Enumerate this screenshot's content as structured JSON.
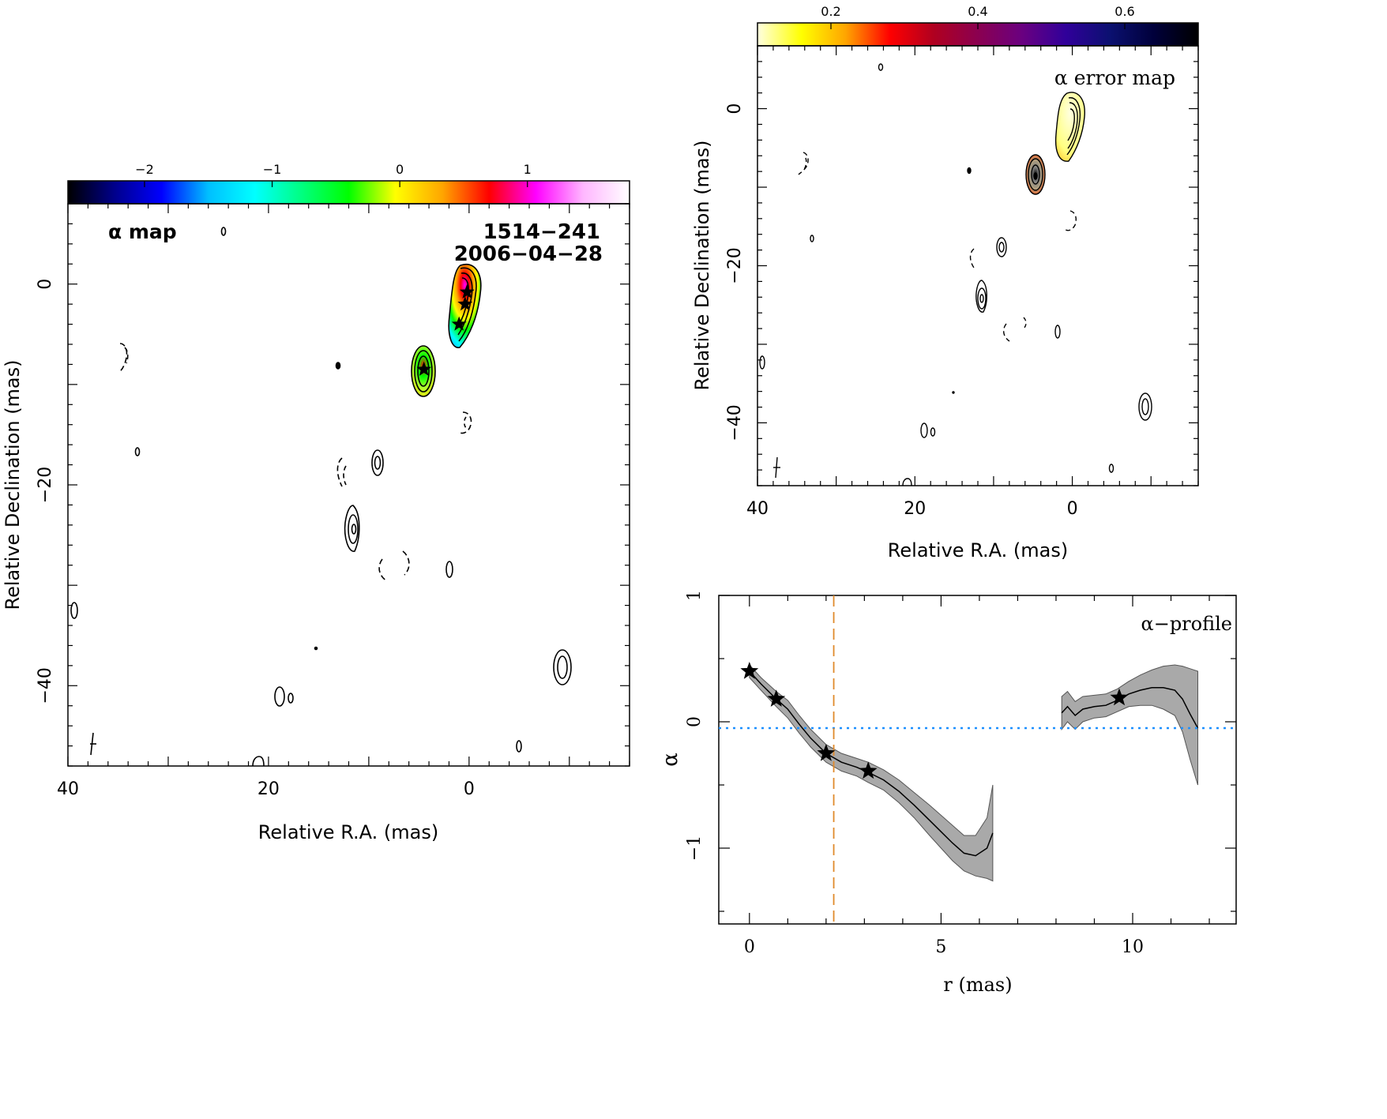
{
  "chart_data": [
    {
      "type": "heatmap",
      "title": "α map",
      "annotation": [
        "1514−241",
        "2006−04−28"
      ],
      "xlabel": "Relative R.A. (mas)",
      "ylabel": "Relative Declination (mas)",
      "xlim": [
        40,
        -16
      ],
      "ylim": [
        -48,
        8
      ],
      "xticks": [
        40,
        20,
        0
      ],
      "yticks": [
        0,
        -20,
        -40
      ],
      "colorbar": {
        "range": [
          -2.6,
          1.8
        ],
        "ticks": [
          -2,
          -1,
          0,
          1
        ],
        "colors": [
          "#000000",
          "#00008b",
          "#0000ff",
          "#00bfff",
          "#00ffff",
          "#00ff7f",
          "#00ff00",
          "#ffff00",
          "#ffa500",
          "#ff0000",
          "#ff00ff",
          "#ffb6ff",
          "#ffffff"
        ]
      },
      "markers": [
        [
          0.2,
          -0.8
        ],
        [
          0.4,
          -2.0
        ],
        [
          1.0,
          -4.0
        ],
        [
          4.5,
          -8.5
        ]
      ]
    },
    {
      "type": "heatmap",
      "title": "α error map",
      "ylabel": "Relative Declination (mas)",
      "xlabel": "Relative R.A. (mas)",
      "xlim": [
        40,
        -16
      ],
      "ylim": [
        -48,
        8
      ],
      "xticks": [
        40,
        20,
        0
      ],
      "yticks": [
        0,
        -20,
        -40
      ],
      "colorbar": {
        "range": [
          0.1,
          0.7
        ],
        "ticks": [
          0.2,
          0.4,
          0.6
        ],
        "colors": [
          "#ffffe0",
          "#ffff00",
          "#ffa500",
          "#ff0000",
          "#b00020",
          "#8b0050",
          "#6a0080",
          "#30009a",
          "#0b1070",
          "#00003a",
          "#000000"
        ]
      }
    },
    {
      "type": "line",
      "title": "α−profile",
      "xlabel": "r (mas)",
      "ylabel": "α",
      "xlim": [
        -0.8,
        12.7
      ],
      "ylim": [
        -1.6,
        1.0
      ],
      "xticks": [
        0,
        5,
        10
      ],
      "yticks": [
        1,
        0,
        -1
      ],
      "hline": -0.05,
      "vline": 2.2,
      "series": [
        {
          "x": [
            0,
            0.3,
            0.7,
            1.0,
            1.3,
            1.6,
            2.0,
            2.4,
            2.8,
            3.1,
            3.5,
            3.9,
            4.3,
            4.7,
            5.0,
            5.3,
            5.6,
            5.9,
            6.2,
            6.35
          ],
          "y": [
            0.4,
            0.3,
            0.18,
            0.1,
            -0.02,
            -0.13,
            -0.25,
            -0.32,
            -0.36,
            -0.4,
            -0.46,
            -0.55,
            -0.66,
            -0.78,
            -0.87,
            -0.96,
            -1.04,
            -1.06,
            -1.0,
            -0.88
          ],
          "err": [
            0.05,
            0.05,
            0.06,
            0.07,
            0.07,
            0.07,
            0.07,
            0.07,
            0.07,
            0.08,
            0.08,
            0.09,
            0.1,
            0.12,
            0.13,
            0.14,
            0.14,
            0.16,
            0.24,
            0.38
          ]
        },
        {
          "x": [
            8.15,
            8.3,
            8.5,
            8.7,
            9.0,
            9.3,
            9.6,
            9.9,
            10.2,
            10.5,
            10.8,
            11.1,
            11.3,
            11.5,
            11.7
          ],
          "y": [
            0.07,
            0.12,
            0.05,
            0.1,
            0.12,
            0.13,
            0.17,
            0.22,
            0.25,
            0.27,
            0.27,
            0.25,
            0.18,
            0.06,
            -0.05
          ],
          "err": [
            0.13,
            0.12,
            0.11,
            0.1,
            0.09,
            0.09,
            0.09,
            0.1,
            0.12,
            0.14,
            0.17,
            0.2,
            0.26,
            0.36,
            0.45
          ]
        }
      ],
      "markers": [
        [
          0,
          0.4
        ],
        [
          0.7,
          0.18
        ],
        [
          2.0,
          -0.25
        ],
        [
          3.1,
          -0.39
        ],
        [
          9.65,
          0.19
        ]
      ]
    }
  ]
}
